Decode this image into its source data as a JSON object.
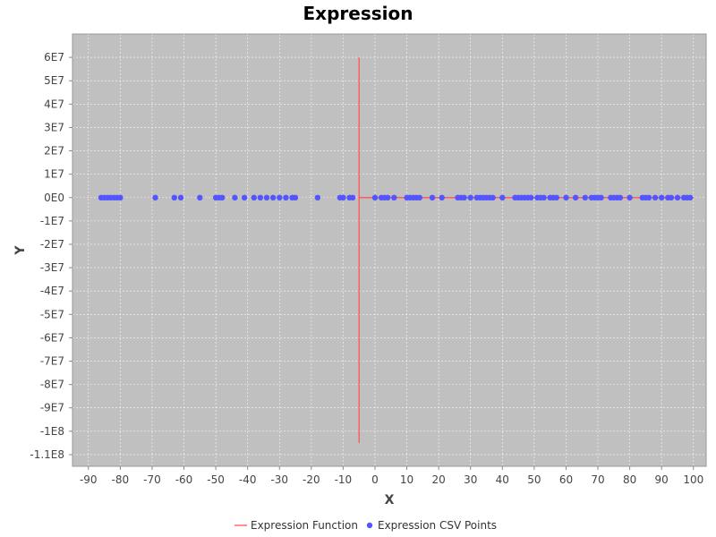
{
  "chart_data": {
    "type": "scatter",
    "title": "Expression",
    "xlabel": "X",
    "ylabel": "Y",
    "xlim": [
      -95,
      104
    ],
    "ylim": [
      -115000000,
      70000000
    ],
    "x_ticks": [
      -90,
      -80,
      -70,
      -60,
      -50,
      -40,
      -30,
      -20,
      -10,
      0,
      10,
      20,
      30,
      40,
      50,
      60,
      70,
      80,
      90,
      100
    ],
    "x_tick_labels": [
      "-90",
      "-80",
      "-70",
      "-60",
      "-50",
      "-40",
      "-30",
      "-20",
      "-10",
      "0",
      "10",
      "20",
      "30",
      "40",
      "50",
      "60",
      "70",
      "80",
      "90",
      "100"
    ],
    "y_ticks": [
      60000000,
      50000000,
      40000000,
      30000000,
      20000000,
      10000000,
      0,
      -10000000,
      -20000000,
      -30000000,
      -40000000,
      -50000000,
      -60000000,
      -70000000,
      -80000000,
      -90000000,
      -100000000,
      -110000000
    ],
    "y_tick_labels": [
      "6E7",
      "5E7",
      "4E7",
      "3E7",
      "2E7",
      "1E7",
      "0E0",
      "-1E7",
      "-2E7",
      "-3E7",
      "-4E7",
      "-5E7",
      "-6E7",
      "-7E7",
      "-8E7",
      "-9E7",
      "-1E8",
      "-1.1E8"
    ],
    "grid": true,
    "background_color": "#c0c0c0",
    "legend_position": "bottom",
    "series": [
      {
        "name": "Expression Function",
        "kind": "line",
        "color": "#ff5555",
        "points": [
          [
            -5,
            60000000
          ],
          [
            -5,
            -105000000
          ],
          [
            -5,
            0
          ],
          [
            100,
            0
          ]
        ]
      },
      {
        "name": "Expression CSV Points",
        "kind": "scatter",
        "color": "#5555ff",
        "x": [
          -86,
          -85,
          -84,
          -83,
          -82,
          -81,
          -80,
          -69,
          -63,
          -61,
          -55,
          -50,
          -49,
          -48,
          -44,
          -41,
          -38,
          -36,
          -34,
          -32,
          -30,
          -28,
          -26,
          -25,
          -18,
          -11,
          -10,
          -8,
          -7,
          0,
          2,
          3,
          4,
          6,
          10,
          11,
          12,
          13,
          14,
          18,
          21,
          26,
          27,
          28,
          30,
          32,
          33,
          34,
          35,
          36,
          37,
          40,
          44,
          45,
          46,
          47,
          48,
          49,
          51,
          52,
          53,
          55,
          56,
          57,
          60,
          63,
          66,
          68,
          69,
          70,
          71,
          74,
          75,
          76,
          77,
          80,
          84,
          85,
          86,
          88,
          90,
          92,
          93,
          95,
          97,
          98,
          99
        ],
        "y": [
          0,
          0,
          0,
          0,
          0,
          0,
          0,
          0,
          0,
          0,
          0,
          0,
          0,
          0,
          0,
          0,
          0,
          0,
          0,
          0,
          0,
          0,
          0,
          0,
          0,
          0,
          0,
          0,
          0,
          0,
          0,
          0,
          0,
          0,
          0,
          0,
          0,
          0,
          0,
          0,
          0,
          0,
          0,
          0,
          0,
          0,
          0,
          0,
          0,
          0,
          0,
          0,
          0,
          0,
          0,
          0,
          0,
          0,
          0,
          0,
          0,
          0,
          0,
          0,
          0,
          0,
          0,
          0,
          0,
          0,
          0,
          0,
          0,
          0,
          0,
          0,
          0,
          0,
          0,
          0,
          0,
          0,
          0,
          0,
          0,
          0,
          0
        ]
      }
    ]
  }
}
